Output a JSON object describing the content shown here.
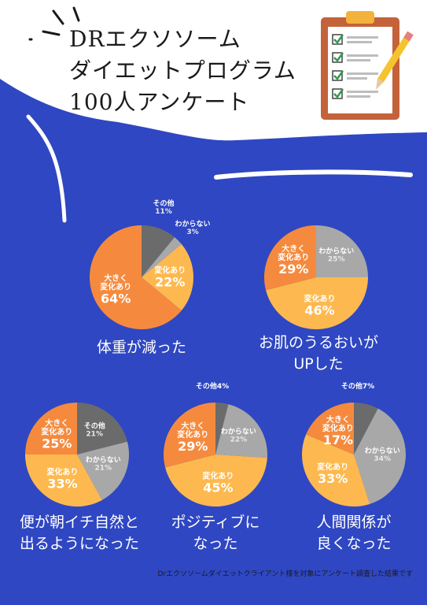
{
  "title": {
    "line1": "DRエクソソーム",
    "line2": "ダイエットプログラム",
    "line3": "100人アンケート"
  },
  "colors": {
    "background_blue": "#2f47c2",
    "big_change": "#f58a3e",
    "change": "#fdb94f",
    "unknown": "#a8a8a8",
    "other": "#6b6b6b",
    "caption_text": "#ffffff"
  },
  "icons": [
    "clipboard-checklist-icon",
    "pencil-icon"
  ],
  "footnote": "Drエクソソームダイエットクライアント様を対象にアンケート調査した結果です",
  "chart_data": [
    {
      "type": "pie",
      "caption_lines": [
        "体重が減った"
      ],
      "slices": [
        {
          "label_lines": [
            "その他"
          ],
          "value": 11,
          "value_text": "11%",
          "color": "#6b6b6b"
        },
        {
          "label_lines": [
            "わからない"
          ],
          "value": 3,
          "value_text": "3%",
          "color": "#a8a8a8"
        },
        {
          "label_lines": [
            "変化あり"
          ],
          "value": 22,
          "value_text": "22%",
          "color": "#fdb94f"
        },
        {
          "label_lines": [
            "大きく",
            "変化あり"
          ],
          "value": 64,
          "value_text": "64%",
          "color": "#f58a3e"
        }
      ]
    },
    {
      "type": "pie",
      "caption_lines": [
        "お肌のうるおいが",
        "UPした"
      ],
      "slices": [
        {
          "label_lines": [
            "わからない"
          ],
          "value": 25,
          "value_text": "25%",
          "color": "#a8a8a8"
        },
        {
          "label_lines": [
            "変化あり"
          ],
          "value": 46,
          "value_text": "46%",
          "color": "#fdb94f"
        },
        {
          "label_lines": [
            "大きく",
            "変化あり"
          ],
          "value": 29,
          "value_text": "29%",
          "color": "#f58a3e"
        }
      ]
    },
    {
      "type": "pie",
      "caption_lines": [
        "便が朝イチ自然と",
        "出るようになった"
      ],
      "slices": [
        {
          "label_lines": [
            "その他"
          ],
          "value": 21,
          "value_text": "21%",
          "color": "#6b6b6b"
        },
        {
          "label_lines": [
            "わからない"
          ],
          "value": 21,
          "value_text": "21%",
          "color": "#a8a8a8"
        },
        {
          "label_lines": [
            "変化あり"
          ],
          "value": 33,
          "value_text": "33%",
          "color": "#fdb94f"
        },
        {
          "label_lines": [
            "大きく",
            "変化あり"
          ],
          "value": 25,
          "value_text": "25%",
          "color": "#f58a3e"
        }
      ]
    },
    {
      "type": "pie",
      "caption_lines": [
        "ポジティブに",
        "なった"
      ],
      "slices": [
        {
          "label_lines": [
            "その他4%"
          ],
          "value": 4,
          "value_text": "",
          "color": "#6b6b6b"
        },
        {
          "label_lines": [
            "わからない"
          ],
          "value": 22,
          "value_text": "22%",
          "color": "#a8a8a8"
        },
        {
          "label_lines": [
            "変化あり"
          ],
          "value": 45,
          "value_text": "45%",
          "color": "#fdb94f"
        },
        {
          "label_lines": [
            "大きく",
            "変化あり"
          ],
          "value": 29,
          "value_text": "29%",
          "color": "#f58a3e"
        }
      ]
    },
    {
      "type": "pie",
      "caption_lines": [
        "人間関係が",
        "良くなった"
      ],
      "slices": [
        {
          "label_lines": [
            "その他7%"
          ],
          "value": 7,
          "value_text": "",
          "color": "#6b6b6b"
        },
        {
          "label_lines": [
            "わからない"
          ],
          "value": 34,
          "value_text": "34%",
          "color": "#a8a8a8"
        },
        {
          "label_lines": [
            "変化あり"
          ],
          "value": 33,
          "value_text": "33%",
          "color": "#fdb94f"
        },
        {
          "label_lines": [
            "大きく",
            "変化あり"
          ],
          "value": 17,
          "value_text": "17%",
          "color": "#f58a3e"
        }
      ]
    }
  ]
}
